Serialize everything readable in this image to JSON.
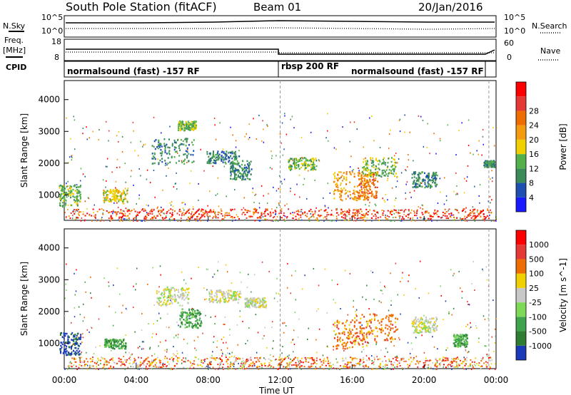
{
  "header": {
    "title": "South Pole Station (fitACF)",
    "beam": "Beam 01",
    "date": "20/Jan/2016"
  },
  "small_panels": {
    "nsky_label": "N.Sky",
    "nsearch_label": "N.Search",
    "freq_label_1": "Freq.",
    "freq_label_2": "[MHz]",
    "nave_label": "Nave",
    "cpid_label": "CPID",
    "nsky_ticks": [
      "10^5",
      "10^0"
    ],
    "nsearch_ticks": [
      "10^5",
      "10^0"
    ],
    "freq_ticks": [
      "18",
      "8"
    ],
    "nave_ticks": [
      "60",
      "0"
    ]
  },
  "cpid": {
    "segments": [
      {
        "start_hour": 0,
        "end_hour": 12,
        "label": "normalsound (fast) -157 RF"
      },
      {
        "start_hour": 12,
        "end_hour": 24,
        "label": "rbsp 200 RF"
      }
    ],
    "extra_label": "normalsound (fast) -157 RF"
  },
  "chart_data": [
    {
      "type": "heatmap",
      "title": "",
      "xlabel": "",
      "ylabel": "Slant Range [km]",
      "x_ticks": [
        "00:00",
        "04:00",
        "08:00",
        "12:00",
        "16:00",
        "20:00",
        "00:00"
      ],
      "y_ticks": [
        "1000",
        "2000",
        "3000",
        "4000"
      ],
      "xlim": [
        0,
        24
      ],
      "ylim": [
        200,
        4600
      ],
      "colorbar": {
        "label": "Power [dB]",
        "ticks": [
          "4",
          "8",
          "12",
          "16",
          "20",
          "24",
          "28"
        ],
        "colors": [
          "#1a1aff",
          "#1f4fb0",
          "#3a8a5a",
          "#53b04a",
          "#f0d000",
          "#f39c12",
          "#ef6c00",
          "#e53935",
          "#ff0000"
        ]
      },
      "clusters": [
        {
          "hour": 0.3,
          "range": 1000,
          "dh": 0.6,
          "dr": 350,
          "level": 3
        },
        {
          "hour": 2.8,
          "range": 1000,
          "dh": 0.7,
          "dr": 200,
          "level": 4
        },
        {
          "hour": 6.0,
          "range": 2400,
          "dh": 1.2,
          "dr": 400,
          "level": 2
        },
        {
          "hour": 6.8,
          "range": 3200,
          "dh": 0.5,
          "dr": 150,
          "level": 3
        },
        {
          "hour": 8.8,
          "range": 2200,
          "dh": 0.9,
          "dr": 200,
          "level": 2
        },
        {
          "hour": 9.8,
          "range": 1800,
          "dh": 0.6,
          "dr": 300,
          "level": 2
        },
        {
          "hour": 13.2,
          "range": 2000,
          "dh": 0.8,
          "dr": 200,
          "level": 3
        },
        {
          "hour": 15.9,
          "range": 1300,
          "dh": 1.0,
          "dr": 450,
          "level": 5
        },
        {
          "hour": 16.8,
          "range": 1300,
          "dh": 0.6,
          "dr": 450,
          "level": 6
        },
        {
          "hour": 17.5,
          "range": 1900,
          "dh": 1.0,
          "dr": 300,
          "level": 3
        },
        {
          "hour": 20.0,
          "range": 1500,
          "dh": 0.7,
          "dr": 250,
          "level": 2
        },
        {
          "hour": 23.6,
          "range": 2000,
          "dh": 0.3,
          "dr": 100,
          "level": 2
        }
      ],
      "ground_band": {
        "range": 420,
        "dr": 160,
        "level": 7
      }
    },
    {
      "type": "heatmap",
      "title": "",
      "xlabel": "Time UT",
      "ylabel": "Slant Range [km]",
      "x_ticks": [
        "00:00",
        "04:00",
        "08:00",
        "12:00",
        "16:00",
        "20:00",
        "00:00"
      ],
      "y_ticks": [
        "1000",
        "2000",
        "3000",
        "4000"
      ],
      "xlim": [
        0,
        24
      ],
      "ylim": [
        200,
        4600
      ],
      "colorbar": {
        "label": "Velocity [m s^-1]",
        "ticks": [
          "1000",
          "500",
          "100",
          "25",
          "-25",
          "-100",
          "-500",
          "-1000"
        ],
        "colors": [
          "#1a3ab8",
          "#2e7d32",
          "#3fa34d",
          "#7ed957",
          "#c8c8c8",
          "#f0d000",
          "#ef6c00",
          "#e53935",
          "#ff0000"
        ]
      },
      "clusters": [
        {
          "hour": 0.3,
          "range": 1000,
          "dh": 0.6,
          "dr": 350,
          "level": 0
        },
        {
          "hour": 2.8,
          "range": 1000,
          "dh": 0.6,
          "dr": 150,
          "level": 2
        },
        {
          "hour": 6.0,
          "range": 2500,
          "dh": 0.9,
          "dr": 300,
          "level": 4
        },
        {
          "hour": 7.0,
          "range": 1800,
          "dh": 0.6,
          "dr": 300,
          "level": 2
        },
        {
          "hour": 8.9,
          "range": 2500,
          "dh": 0.9,
          "dr": 200,
          "level": 4
        },
        {
          "hour": 10.6,
          "range": 2300,
          "dh": 0.6,
          "dr": 150,
          "level": 4
        },
        {
          "hour": 15.9,
          "range": 1300,
          "dh": 1.0,
          "dr": 450,
          "level": 6
        },
        {
          "hour": 17.3,
          "range": 1500,
          "dh": 1.2,
          "dr": 450,
          "level": 6
        },
        {
          "hour": 20.0,
          "range": 1600,
          "dh": 0.7,
          "dr": 250,
          "level": 4
        },
        {
          "hour": 22.0,
          "range": 1100,
          "dh": 0.4,
          "dr": 200,
          "level": 2
        }
      ],
      "ground_band": {
        "range": 420,
        "dr": 160,
        "level": 6
      }
    }
  ]
}
